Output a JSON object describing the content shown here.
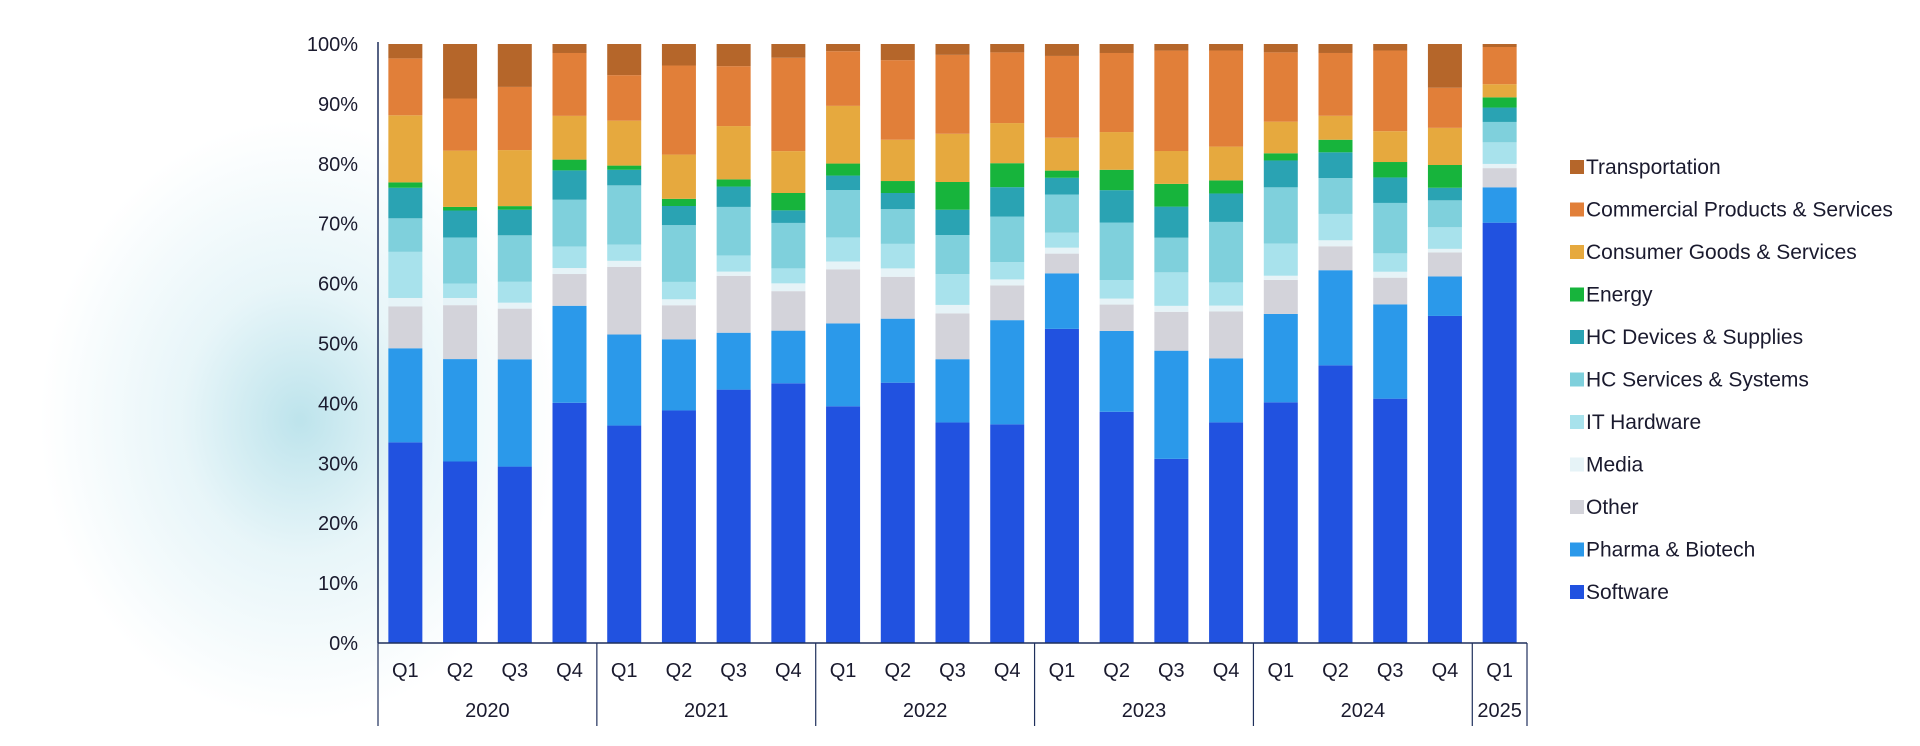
{
  "chart_data": {
    "type": "bar",
    "stacked": true,
    "normalized": true,
    "ylim": [
      0,
      100
    ],
    "y_ticks": [
      "0%",
      "10%",
      "20%",
      "30%",
      "40%",
      "50%",
      "60%",
      "70%",
      "80%",
      "90%",
      "100%"
    ],
    "y_tick_values": [
      0,
      10,
      20,
      30,
      40,
      50,
      60,
      70,
      80,
      90,
      100
    ],
    "categories": [
      "Q1",
      "Q2",
      "Q3",
      "Q4",
      "Q1",
      "Q2",
      "Q3",
      "Q4",
      "Q1",
      "Q2",
      "Q3",
      "Q4",
      "Q1",
      "Q2",
      "Q3",
      "Q4",
      "Q1",
      "Q2",
      "Q3",
      "Q4",
      "Q1"
    ],
    "groups": [
      {
        "label": "2020",
        "count": 4
      },
      {
        "label": "2021",
        "count": 4
      },
      {
        "label": "2022",
        "count": 4
      },
      {
        "label": "2023",
        "count": 4
      },
      {
        "label": "2024",
        "count": 4
      },
      {
        "label": "2025",
        "count": 1
      }
    ],
    "legend_position": "right",
    "grid": false,
    "series": [
      {
        "name": "Software",
        "color": "#2152e0",
        "values": [
          33.5,
          30.3,
          29.6,
          40.1,
          36.3,
          38.9,
          42.3,
          43.4,
          39.4,
          43.5,
          36.6,
          36.5,
          52.6,
          38.6,
          30.8,
          37.2,
          40.3,
          46.4,
          41.2,
          54.6,
          70.1
        ]
      },
      {
        "name": "Pharma & Biotech",
        "color": "#2b99ea",
        "values": [
          15.7,
          17.1,
          18.0,
          16.2,
          15.2,
          11.9,
          9.5,
          8.8,
          13.8,
          10.7,
          10.5,
          17.4,
          9.3,
          13.5,
          18.1,
          10.8,
          14.8,
          15.9,
          15.9,
          6.6,
          5.9
        ]
      },
      {
        "name": "Other",
        "color": "#d3d3da",
        "values": [
          7.0,
          9.0,
          8.5,
          5.3,
          11.3,
          5.7,
          9.5,
          6.6,
          9.0,
          7.0,
          7.6,
          5.8,
          3.3,
          4.4,
          6.5,
          7.9,
          5.7,
          4.0,
          4.5,
          4.0,
          3.2
        ]
      },
      {
        "name": "Media",
        "color": "#e6f3f7",
        "values": [
          1.4,
          1.2,
          1.0,
          1.0,
          1.0,
          1.0,
          0.7,
          1.3,
          1.3,
          1.4,
          1.4,
          1.0,
          1.0,
          1.0,
          1.0,
          1.0,
          0.7,
          1.0,
          1.0,
          0.6,
          0.7
        ]
      },
      {
        "name": "IT Hardware",
        "color": "#a8e2ec",
        "values": [
          7.7,
          2.4,
          3.5,
          3.6,
          2.7,
          2.9,
          2.7,
          2.5,
          4.0,
          4.1,
          5.1,
          2.9,
          2.5,
          3.1,
          5.6,
          3.9,
          5.4,
          4.4,
          3.1,
          3.6,
          3.6
        ]
      },
      {
        "name": "HC Services & Systems",
        "color": "#7fd0dc",
        "values": [
          5.6,
          7.7,
          7.8,
          7.8,
          9.9,
          9.5,
          8.1,
          7.6,
          7.9,
          5.8,
          6.5,
          7.6,
          6.4,
          9.6,
          5.8,
          10.2,
          9.4,
          6.0,
          8.5,
          4.5,
          3.4
        ]
      },
      {
        "name": "HC Devices & Supplies",
        "color": "#2aa3b3",
        "values": [
          5.1,
          4.5,
          4.3,
          4.9,
          2.6,
          3.2,
          3.4,
          2.1,
          2.4,
          2.7,
          4.2,
          4.9,
          2.8,
          5.4,
          5.2,
          4.8,
          4.5,
          4.3,
          4.3,
          2.1,
          2.4
        ]
      },
      {
        "name": "Energy",
        "color": "#17b43c",
        "values": [
          0.9,
          0.6,
          0.6,
          1.8,
          0.7,
          1.2,
          1.2,
          2.9,
          2.0,
          2.0,
          4.6,
          4.0,
          1.2,
          3.4,
          3.8,
          2.2,
          1.2,
          2.1,
          2.6,
          3.8,
          1.7
        ]
      },
      {
        "name": "Consumer Goods & Services",
        "color": "#e6a93e",
        "values": [
          11.2,
          9.4,
          9.4,
          7.3,
          7.5,
          7.4,
          8.9,
          7.0,
          9.6,
          6.9,
          8.0,
          6.7,
          5.5,
          6.3,
          5.5,
          5.7,
          5.3,
          4.0,
          5.2,
          6.2,
          2.2
        ]
      },
      {
        "name": "Commercial Products & Services",
        "color": "#e17f39",
        "values": [
          9.5,
          8.7,
          10.6,
          10.5,
          7.6,
          14.9,
          10.0,
          15.6,
          9.1,
          13.3,
          13.1,
          11.8,
          13.7,
          13.2,
          16.8,
          16.2,
          11.6,
          10.5,
          13.6,
          6.7,
          6.2
        ]
      },
      {
        "name": "Transportation",
        "color": "#b5662a",
        "values": [
          2.4,
          9.1,
          7.2,
          1.5,
          5.2,
          3.6,
          3.7,
          2.3,
          1.2,
          2.7,
          1.8,
          1.4,
          2.0,
          1.5,
          1.1,
          1.1,
          1.4,
          1.5,
          1.1,
          7.3,
          0.5
        ]
      }
    ]
  }
}
